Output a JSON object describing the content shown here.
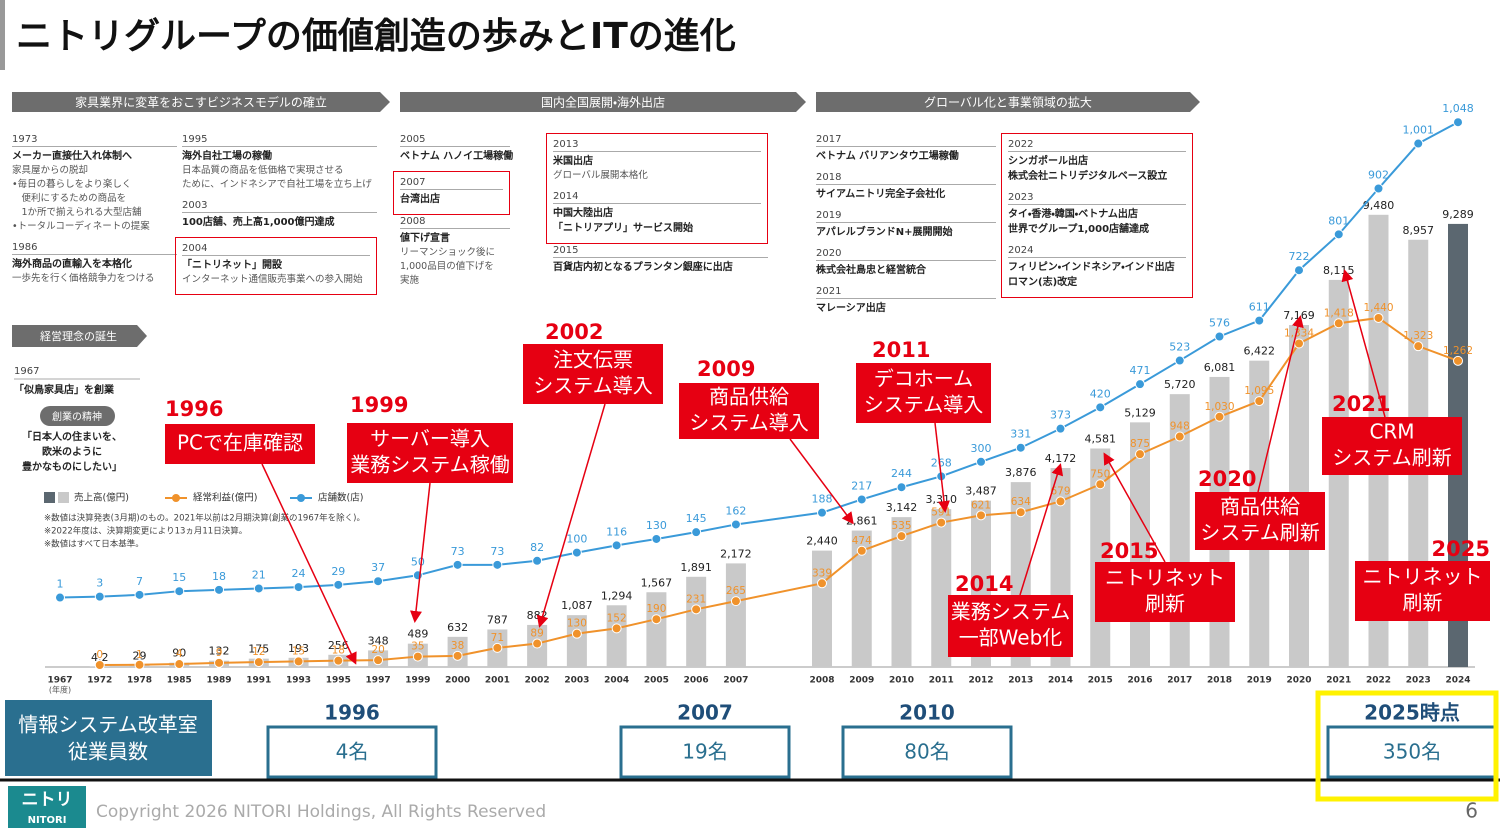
{
  "title": "ニトリグループの価値創造の歩みとITの進化",
  "phases": [
    "家具業界に変革をおこすビジネスモデルの確立",
    "国内全国展開・海外出店",
    "グローバル化と事業領域の拡大"
  ],
  "timeline": [
    [
      {
        "year": "1973",
        "head": [
          "メーカー直接仕入れ体制へ"
        ],
        "body": [
          "家具屋からの脱却",
          "•毎日の暮らしをより楽しく",
          "　便利にするための商品を",
          "　1か所で揃えられる大型店舗",
          "•トータルコーディネートの提案"
        ]
      },
      {
        "year": "1986",
        "head": [
          "海外商品の直輸入を本格化"
        ],
        "body": [
          "一歩先を行く価格競争力をつける"
        ]
      }
    ],
    [
      {
        "year": "1995",
        "head": [
          "海外自社工場の稼働"
        ],
        "body": [
          "日本品質の商品を低価格で実現させる",
          "ために、インドネシアで自社工場を立ち上げ"
        ]
      },
      {
        "year": "2003",
        "head": [
          "100店舗、売上高1,000億円達成"
        ]
      },
      {
        "year": "2004",
        "head": [
          "「ニトリネット」開設"
        ],
        "body": [
          "インターネット通信販売事業への参入開始"
        ]
      }
    ],
    [
      {
        "year": "2005",
        "head": [
          "ベトナム ハノイ工場稼働"
        ]
      },
      {
        "year": "2007",
        "head": [
          "台湾出店"
        ]
      },
      {
        "year": "2008",
        "head": [
          "値下げ宣言"
        ],
        "body": [
          "リーマンショック後に",
          "1,000品目の値下げを",
          "実施"
        ]
      }
    ],
    [
      {
        "year": "2013",
        "head": [
          "米国出店"
        ],
        "body": [
          "グローバル展開本格化"
        ]
      },
      {
        "year": "2014",
        "head": [
          "中国大陸出店",
          "「ニトリアプリ」サービス開始"
        ]
      },
      {
        "year": "2015",
        "head": [
          "百貨店内初となるプランタン銀座に出店"
        ]
      }
    ],
    [
      {
        "year": "2017",
        "head": [
          "ベトナム バリアンタウ工場稼働"
        ]
      },
      {
        "year": "2018",
        "head": [
          "サイアムニトリ完全子会社化"
        ]
      },
      {
        "year": "2019",
        "head": [
          "アパレルブランドN+展開開始"
        ]
      },
      {
        "year": "2020",
        "head": [
          "株式会社島忠と経営統合"
        ]
      },
      {
        "year": "2021",
        "head": [
          "マレーシア出店"
        ]
      }
    ],
    [
      {
        "year": "2022",
        "head": [
          "シンガポール出店",
          "株式会社ニトリデジタルベース設立"
        ]
      },
      {
        "year": "2023",
        "head": [
          "タイ・香港・韓国・ベトナム出店",
          "世界でグループ1,000店舗達成"
        ]
      },
      {
        "year": "2024",
        "head": [
          "フィリピン・インドネシア・インド出店",
          "ロマン(志)改定"
        ]
      }
    ]
  ],
  "philosophy": {
    "banner": "経営理念の誕生",
    "year": "1967",
    "event": "「似鳥家具店」を創業",
    "spirit_banner": "創業の精神",
    "quote": [
      "「日本人の住まいを、",
      "欧米のように",
      "豊かなものにしたい」"
    ]
  },
  "chart_data": {
    "type": "bar",
    "categories": [
      "1967",
      "1972",
      "1978",
      "1985",
      "1989",
      "1991",
      "1993",
      "1995",
      "1997",
      "1999",
      "2000",
      "2001",
      "2002",
      "2003",
      "2004",
      "2005",
      "2006",
      "2007",
      "2008",
      "2009",
      "2010",
      "2011",
      "2012",
      "2013",
      "2014",
      "2015",
      "2016",
      "2017",
      "2018",
      "2019",
      "2020",
      "2021",
      "2022",
      "2023",
      "2024"
    ],
    "x_unit": "(年度)",
    "series": [
      {
        "name": "売上高(億円)",
        "type": "bar",
        "color": "#c9c9c9",
        "latest_color": "#5b6770",
        "values": [
          null,
          4.2,
          29,
          90,
          132,
          175,
          193,
          256,
          348,
          489,
          632,
          787,
          882,
          1087,
          1294,
          1567,
          1891,
          2172,
          2440,
          2861,
          3142,
          3310,
          3487,
          3876,
          4172,
          4581,
          5129,
          5720,
          6081,
          6422,
          7169,
          8115,
          9480,
          8957,
          9289
        ],
        "value_labels": [
          null,
          "4.2",
          "29",
          "90",
          "132",
          "175",
          "193",
          "256",
          "348",
          "489",
          "632",
          "787",
          "882",
          "1,087",
          "1,294",
          "1,567",
          "1,891",
          "2,172",
          "2,440",
          "2,861",
          "3,142",
          "3,310",
          "3,487",
          "3,876",
          "4,172",
          "4,581",
          "5,129",
          "5,720",
          "6,081",
          "6,422",
          "7,169",
          "8,115",
          "9,480",
          "8,957",
          "9,289"
        ]
      },
      {
        "name": "経常利益(億円)",
        "type": "line",
        "color": "#f0922b",
        "values": [
          null,
          0,
          1,
          4,
          9,
          12,
          15,
          18,
          20,
          35,
          38,
          71,
          89,
          130,
          152,
          190,
          231,
          265,
          339,
          474,
          535,
          591,
          621,
          634,
          679,
          750,
          875,
          948,
          1030,
          1095,
          1334,
          1418,
          1440,
          1323,
          1262
        ],
        "value_labels": [
          null,
          "0",
          "1",
          "4",
          "9",
          "12",
          "15",
          "18",
          "20",
          "35",
          "38",
          "71",
          "89",
          "130",
          "152",
          "190",
          "231",
          "265",
          "339",
          "474",
          "535",
          "591",
          "621",
          "634",
          "679",
          "750",
          "875",
          "948",
          "1,030",
          "1,095",
          "1,334",
          "1,418",
          "1,440",
          "1,323",
          "1,262"
        ]
      },
      {
        "name": "店舗数(店)",
        "type": "line",
        "color": "#3a9ad9",
        "values": [
          1,
          3,
          7,
          15,
          18,
          21,
          24,
          29,
          37,
          50,
          73,
          73,
          82,
          100,
          116,
          130,
          145,
          162,
          188,
          217,
          244,
          268,
          300,
          331,
          373,
          420,
          471,
          523,
          576,
          611,
          722,
          801,
          902,
          1001,
          1048
        ],
        "value_labels": [
          "1",
          "3",
          "7",
          "15",
          "18",
          "21",
          "24",
          "29",
          "37",
          "50",
          "73",
          "73",
          "82",
          "100",
          "116",
          "130",
          "145",
          "162",
          "188",
          "217",
          "244",
          "268",
          "300",
          "331",
          "373",
          "420",
          "471",
          "523",
          "576",
          "611",
          "722",
          "801",
          "902",
          "1,001",
          "1,048"
        ]
      }
    ],
    "notes": [
      "※数値は決算発表(3月期)のもの。2021年以前は2月期決算(創業の1967年を除く)。",
      "※2022年度は、決算期変更により13ヵ月11日決算。",
      "※数値はすべて日本基準。"
    ],
    "annotations": [
      {
        "year": "1996",
        "lines": [
          "PCで在庫確認"
        ]
      },
      {
        "year": "1999",
        "lines": [
          "サーバー導入",
          "業務システム稼働"
        ]
      },
      {
        "year": "2002",
        "lines": [
          "注文伝票",
          "システム導入"
        ]
      },
      {
        "year": "2009",
        "lines": [
          "商品供給",
          "システム導入"
        ]
      },
      {
        "year": "2011",
        "lines": [
          "デコホーム",
          "システム導入"
        ]
      },
      {
        "year": "2014",
        "lines": [
          "業務システム",
          "一部Web化"
        ]
      },
      {
        "year": "2015",
        "lines": [
          "ニトリネット",
          "刷新"
        ]
      },
      {
        "year": "2020",
        "lines": [
          "商品供給",
          "システム刷新"
        ]
      },
      {
        "year": "2021",
        "lines": [
          "CRM",
          "システム刷新"
        ]
      },
      {
        "year": "2025",
        "lines": [
          "ニトリネット",
          "刷新"
        ]
      }
    ]
  },
  "staff": {
    "label": [
      "情報システム改革室",
      "従業員数"
    ],
    "items": [
      {
        "year": "1996",
        "count": "4名"
      },
      {
        "year": "2007",
        "count": "19名"
      },
      {
        "year": "2010",
        "count": "80名"
      },
      {
        "year": "2025時点",
        "count": "350名"
      }
    ]
  },
  "footer": {
    "logo": [
      "ニトリ",
      "NITORI"
    ],
    "copyright": "Copyright 2026 NITORI Holdings, All Rights Reserved",
    "page": "6"
  }
}
